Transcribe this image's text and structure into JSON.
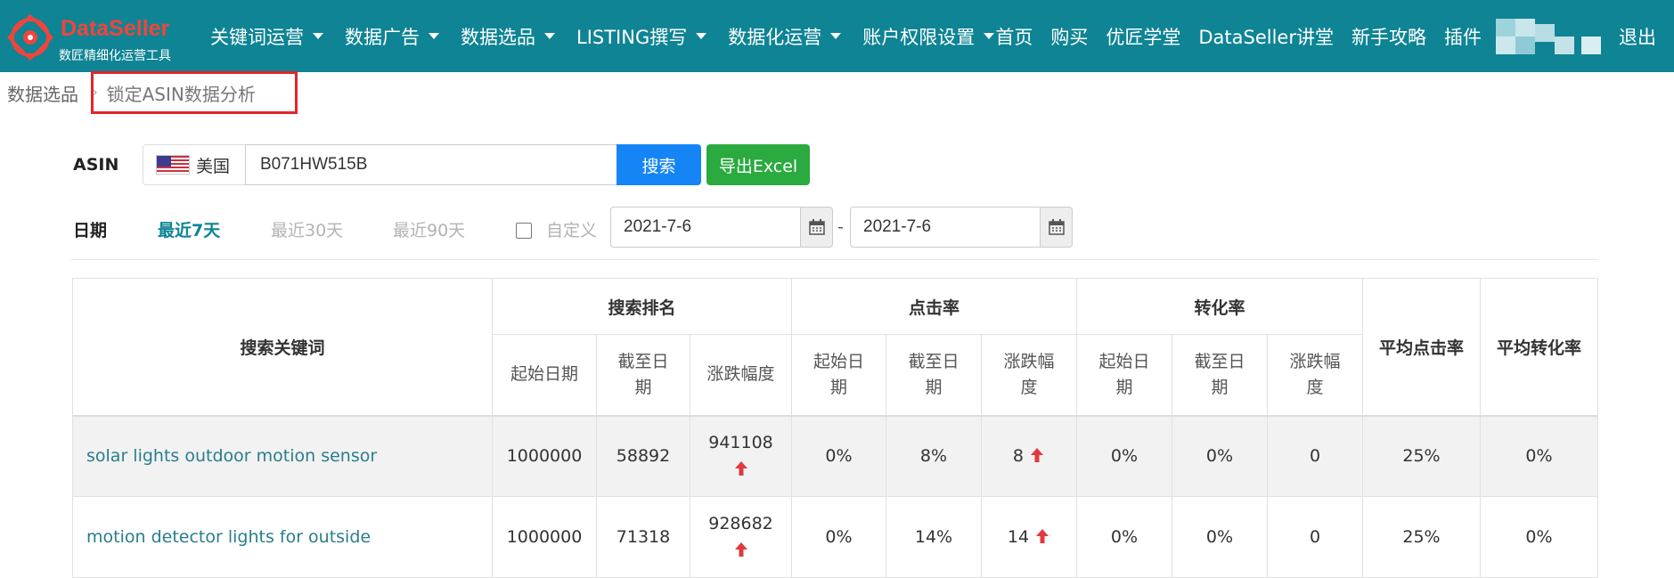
{
  "logo": {
    "title": "DataSeller",
    "subtitle": "数匠精细化运营工具"
  },
  "nav": {
    "menus": [
      "关键词运营",
      "数据广告",
      "数据选品",
      "LISTING撰写",
      "数据化运营",
      "账户权限设置"
    ],
    "links": [
      "首页",
      "购买",
      "优匠学堂",
      "DataSeller讲堂",
      "新手攻略",
      "插件"
    ],
    "logout": "退出"
  },
  "breadcrumb": {
    "parent": "数据选品",
    "current": "锁定ASIN数据分析"
  },
  "search": {
    "asin_label": "ASIN",
    "country": "美国",
    "asin_value": "B071HW515B",
    "search_label": "搜索",
    "export_label": "导出Excel"
  },
  "date": {
    "label": "日期",
    "options": [
      "最近7天",
      "最近30天",
      "最近90天"
    ],
    "active_option": "最近7天",
    "custom_label": "自定义",
    "custom_checked": false,
    "start": "2021-7-6",
    "end": "2021-7-6",
    "separator": "-"
  },
  "table": {
    "headers": {
      "keyword": "搜索关键词",
      "rank_group": "搜索排名",
      "ctr_group": "点击率",
      "cvr_group": "转化率",
      "avg_ctr": "平均点击率",
      "avg_cvr": "平均转化率",
      "rank_sub": [
        "起始日期",
        "截至日期",
        "涨跌幅度"
      ],
      "ctr_sub": [
        "起始日期",
        "截至日期",
        "涨跌幅度"
      ],
      "cvr_sub": [
        "起始日期",
        "截至日期",
        "涨跌幅度"
      ]
    },
    "rows": [
      {
        "keyword": "solar lights outdoor motion sensor",
        "rank_start": "1000000",
        "rank_end": "58892",
        "rank_change": "941108",
        "rank_trend": "up",
        "ctr_start": "0%",
        "ctr_end": "8%",
        "ctr_change": "8",
        "ctr_trend": "up",
        "cvr_start": "0%",
        "cvr_end": "0%",
        "cvr_change": "0",
        "avg_ctr": "25%",
        "avg_cvr": "0%"
      },
      {
        "keyword": "motion detector lights for outside",
        "rank_start": "1000000",
        "rank_end": "71318",
        "rank_change": "928682",
        "rank_trend": "up",
        "ctr_start": "0%",
        "ctr_end": "14%",
        "ctr_change": "14",
        "ctr_trend": "up",
        "cvr_start": "0%",
        "cvr_end": "0%",
        "cvr_change": "0",
        "avg_ctr": "25%",
        "avg_cvr": "0%"
      }
    ]
  },
  "colors": {
    "navbar": "#0e8494",
    "accent": "#0e8494",
    "search_button": "#1585f6",
    "export_button": "#2aaa3f",
    "up_arrow": "#e0393e",
    "highlight_box": "#e0262a"
  }
}
